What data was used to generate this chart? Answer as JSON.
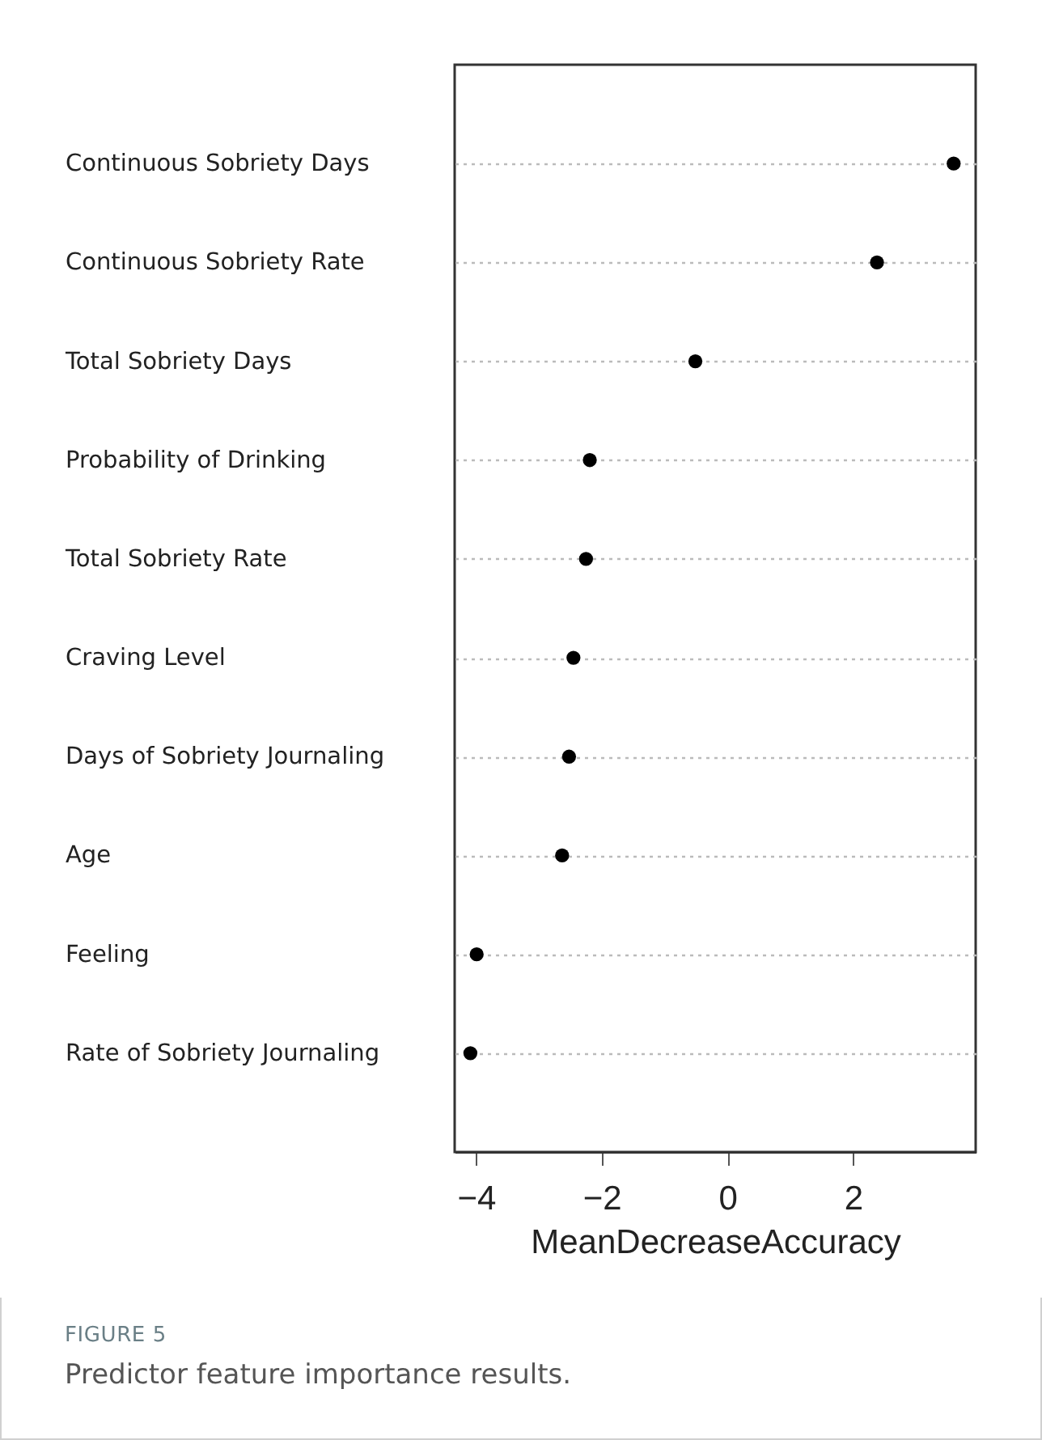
{
  "chart_data": {
    "type": "scatter",
    "xlabel": "MeanDecreaseAccuracy",
    "categories": [
      "Continuous Sobriety Days",
      "Continuous Sobriety Rate",
      "Total Sobriety Days",
      "Probability of Drinking",
      "Total Sobriety Rate",
      "Craving Level",
      "Days of Sobriety Journaling",
      "Age",
      "Feeling",
      "Rate of Sobriety Journaling"
    ],
    "values": [
      3.6,
      2.38,
      -0.51,
      -2.19,
      -2.25,
      -2.45,
      -2.52,
      -2.63,
      -3.99,
      -4.09
    ],
    "color": "#000000",
    "orientation": "horizontal",
    "marker": "circle",
    "grid": "y",
    "line_style": "dotted",
    "xlim": [
      -4.34,
      3.95
    ],
    "xticks": [
      -4,
      -2,
      0,
      2
    ],
    "annotations": [
      "FIGURE 5",
      "Predictor feature importance results."
    ]
  }
}
